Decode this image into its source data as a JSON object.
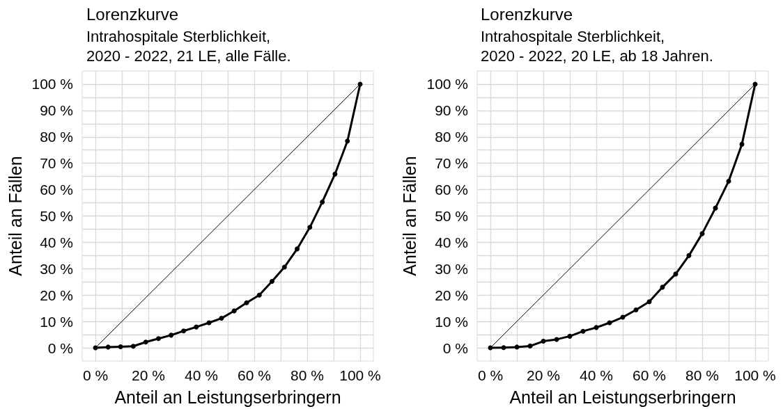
{
  "chart_data": [
    {
      "type": "line",
      "title": "Lorenzkurve",
      "subtitle": "Intrahospitale Sterblichkeit,\n2020 - 2022, 21 LE, alle Fälle.",
      "xlabel": "Anteil an Leistungserbringern",
      "ylabel": "Anteil an Fällen",
      "xlim": [
        -5,
        105
      ],
      "ylim": [
        -5,
        105
      ],
      "xticks": [
        {
          "value": 0,
          "label": "0 %"
        },
        {
          "value": 10,
          "label": null
        },
        {
          "value": 20,
          "label": "20 %"
        },
        {
          "value": 30,
          "label": null
        },
        {
          "value": 40,
          "label": "40 %"
        },
        {
          "value": 50,
          "label": null
        },
        {
          "value": 60,
          "label": "60 %"
        },
        {
          "value": 70,
          "label": null
        },
        {
          "value": 80,
          "label": "80 %"
        },
        {
          "value": 90,
          "label": null
        },
        {
          "value": 100,
          "label": "100 %"
        }
      ],
      "yticks": [
        {
          "value": 0,
          "label": "0 %"
        },
        {
          "value": 5,
          "label": null
        },
        {
          "value": 10,
          "label": "10 %"
        },
        {
          "value": 15,
          "label": null
        },
        {
          "value": 20,
          "label": "20 %"
        },
        {
          "value": 25,
          "label": null
        },
        {
          "value": 30,
          "label": "30 %"
        },
        {
          "value": 35,
          "label": null
        },
        {
          "value": 40,
          "label": "40 %"
        },
        {
          "value": 45,
          "label": null
        },
        {
          "value": 50,
          "label": "50 %"
        },
        {
          "value": 55,
          "label": null
        },
        {
          "value": 60,
          "label": "60 %"
        },
        {
          "value": 65,
          "label": null
        },
        {
          "value": 70,
          "label": "70 %"
        },
        {
          "value": 75,
          "label": null
        },
        {
          "value": 80,
          "label": "80 %"
        },
        {
          "value": 85,
          "label": null
        },
        {
          "value": 90,
          "label": "90 %"
        },
        {
          "value": 95,
          "label": null
        },
        {
          "value": 100,
          "label": "100 %"
        }
      ],
      "grid": true,
      "series": [
        {
          "color": "#000000",
          "marker": "none",
          "x": [
            0,
            100
          ],
          "values": [
            0,
            100
          ]
        },
        {
          "color": "#000000",
          "marker": "circle",
          "x": [
            0,
            4.8,
            9.5,
            14.3,
            19.0,
            23.8,
            28.6,
            33.3,
            38.1,
            42.9,
            47.6,
            52.4,
            57.1,
            61.9,
            66.7,
            71.4,
            76.2,
            81.0,
            85.7,
            90.5,
            95.2,
            100
          ],
          "values": [
            0,
            0.3,
            0.4,
            0.6,
            2.2,
            3.5,
            4.8,
            6.4,
            7.9,
            9.5,
            11.2,
            14.0,
            17.1,
            20.0,
            25.2,
            30.6,
            37.5,
            45.7,
            55.3,
            65.9,
            78.4,
            100
          ]
        }
      ]
    },
    {
      "type": "line",
      "title": "Lorenzkurve",
      "subtitle": "Intrahospitale Sterblichkeit,\n2020 - 2022, 20 LE, ab 18 Jahren.",
      "xlabel": "Anteil an Leistungserbringern",
      "ylabel": "Anteil an Fällen",
      "xlim": [
        -5,
        105
      ],
      "ylim": [
        -5,
        105
      ],
      "xticks": [
        {
          "value": 0,
          "label": "0 %"
        },
        {
          "value": 10,
          "label": null
        },
        {
          "value": 20,
          "label": "20 %"
        },
        {
          "value": 30,
          "label": null
        },
        {
          "value": 40,
          "label": "40 %"
        },
        {
          "value": 50,
          "label": null
        },
        {
          "value": 60,
          "label": "60 %"
        },
        {
          "value": 70,
          "label": null
        },
        {
          "value": 80,
          "label": "80 %"
        },
        {
          "value": 90,
          "label": null
        },
        {
          "value": 100,
          "label": "100 %"
        }
      ],
      "yticks": [
        {
          "value": 0,
          "label": "0 %"
        },
        {
          "value": 5,
          "label": null
        },
        {
          "value": 10,
          "label": "10 %"
        },
        {
          "value": 15,
          "label": null
        },
        {
          "value": 20,
          "label": "20 %"
        },
        {
          "value": 25,
          "label": null
        },
        {
          "value": 30,
          "label": "30 %"
        },
        {
          "value": 35,
          "label": null
        },
        {
          "value": 40,
          "label": "40 %"
        },
        {
          "value": 45,
          "label": null
        },
        {
          "value": 50,
          "label": "50 %"
        },
        {
          "value": 55,
          "label": null
        },
        {
          "value": 60,
          "label": "60 %"
        },
        {
          "value": 65,
          "label": null
        },
        {
          "value": 70,
          "label": "70 %"
        },
        {
          "value": 75,
          "label": null
        },
        {
          "value": 80,
          "label": "80 %"
        },
        {
          "value": 85,
          "label": null
        },
        {
          "value": 90,
          "label": "90 %"
        },
        {
          "value": 95,
          "label": null
        },
        {
          "value": 100,
          "label": "100 %"
        }
      ],
      "grid": true,
      "series": [
        {
          "color": "#000000",
          "marker": "none",
          "x": [
            0,
            100
          ],
          "values": [
            0,
            100
          ]
        },
        {
          "color": "#000000",
          "marker": "circle",
          "x": [
            0,
            5,
            10,
            15,
            20,
            25,
            30,
            35,
            40,
            45,
            50,
            55,
            60,
            65,
            70,
            75,
            80,
            85,
            90,
            95,
            100
          ],
          "values": [
            0,
            0.1,
            0.3,
            0.7,
            2.5,
            3.2,
            4.4,
            6.3,
            7.7,
            9.5,
            11.6,
            14.4,
            17.5,
            23.0,
            28.0,
            35.0,
            43.3,
            53.0,
            63.2,
            77.2,
            100
          ]
        }
      ]
    }
  ]
}
